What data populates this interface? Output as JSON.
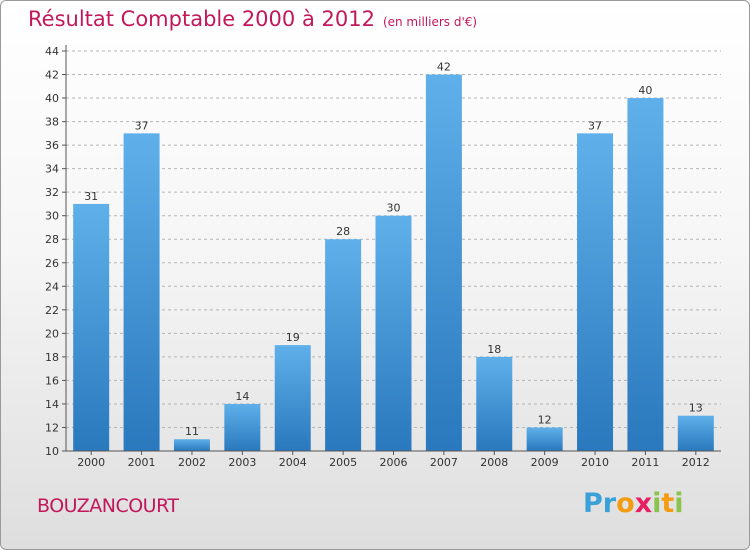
{
  "header": {
    "title": "Résultat Comptable 2000 à 2012",
    "subtitle": "(en milliers d'€)"
  },
  "commune": "BOUZANCOURT",
  "logo": {
    "letters": [
      "P",
      "r",
      "o",
      "x",
      "i",
      "t",
      "i"
    ],
    "colors": [
      "#3aa0d8",
      "#3aa0d8",
      "#f39c12",
      "#e91e63",
      "#8bc34a",
      "#f39c12",
      "#8bc34a"
    ]
  },
  "chart_data": {
    "type": "bar",
    "title": "Résultat Comptable 2000 à 2012",
    "subtitle": "(en milliers d'€)",
    "xlabel": "",
    "ylabel": "",
    "categories": [
      "2000",
      "2001",
      "2002",
      "2003",
      "2004",
      "2005",
      "2006",
      "2007",
      "2008",
      "2009",
      "2010",
      "2011",
      "2012"
    ],
    "values": [
      31,
      37,
      11,
      14,
      19,
      28,
      30,
      42,
      18,
      12,
      37,
      40,
      13
    ],
    "ylim": [
      10,
      44
    ],
    "yticks": [
      10,
      12,
      14,
      16,
      18,
      20,
      22,
      24,
      26,
      28,
      30,
      32,
      34,
      36,
      38,
      40,
      42,
      44
    ],
    "grid": true,
    "bar_color": "#3f95d6",
    "title_color": "#c2185b"
  }
}
